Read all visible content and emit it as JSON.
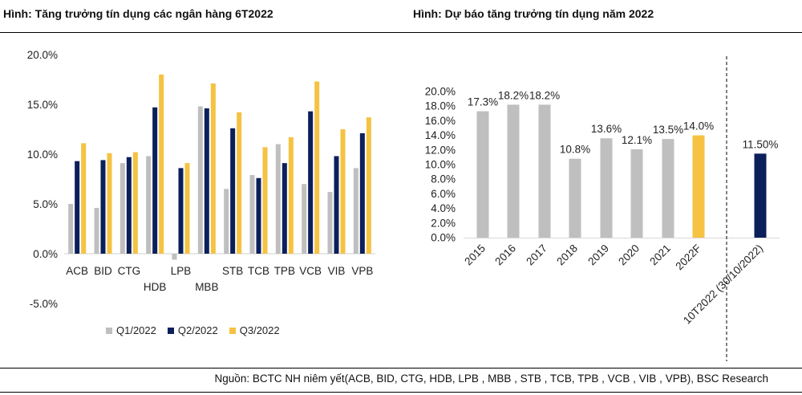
{
  "figures": {
    "left_title": "Hình: Tăng trưởng tín dụng các ngân hàng 6T2022",
    "right_title": "Hình: Dự báo tăng trưởng tín dụng năm 2022",
    "source": "Nguồn: BCTC NH niêm yết(ACB, BID, CTG, HDB, LPB , MBB , STB , TCB, TPB , VCB , VIB , VPB), BSC Research"
  },
  "chart_data": [
    {
      "type": "bar",
      "categories": [
        "ACB",
        "BID",
        "CTG",
        "HDB",
        "LPB",
        "MBB",
        "STB",
        "TCB",
        "TPB",
        "VCB",
        "VIB",
        "VPB"
      ],
      "series": [
        {
          "name": "Q1/2022",
          "color": "#bfbfbf",
          "values": [
            5.0,
            4.6,
            9.1,
            9.8,
            -0.6,
            14.8,
            6.5,
            7.9,
            11.0,
            7.0,
            6.2,
            8.6
          ]
        },
        {
          "name": "Q2/2022",
          "color": "#0b1f5b",
          "values": [
            9.3,
            9.4,
            9.7,
            14.7,
            8.6,
            14.6,
            12.6,
            7.6,
            9.1,
            14.3,
            9.8,
            12.1
          ]
        },
        {
          "name": "Q3/2022",
          "color": "#f5c242",
          "values": [
            11.1,
            10.1,
            10.2,
            18.0,
            9.1,
            17.1,
            14.2,
            10.7,
            11.7,
            17.3,
            12.5,
            13.7
          ]
        }
      ],
      "ylim": [
        -5,
        20
      ],
      "yticks": [
        "20.0%",
        "15.0%",
        "10.0%",
        "5.0%",
        "0.0%",
        "-5.0%"
      ],
      "ytick_values": [
        20,
        15,
        10,
        5,
        0,
        -5
      ],
      "legend": "bottom",
      "grid": false
    },
    {
      "type": "bar",
      "categories": [
        "2015",
        "2016",
        "2017",
        "2018",
        "2019",
        "2020",
        "2021",
        "2022F",
        "10T2022 (30/10/2022)"
      ],
      "values": [
        17.3,
        18.2,
        18.2,
        10.8,
        13.6,
        12.1,
        13.5,
        14.0,
        11.5
      ],
      "data_labels": [
        "17.3%",
        "18.2%",
        "18.2%",
        "10.8%",
        "13.6%",
        "12.1%",
        "13.5%",
        "14.0%",
        "11.50%"
      ],
      "colors": [
        "#bfbfbf",
        "#bfbfbf",
        "#bfbfbf",
        "#bfbfbf",
        "#bfbfbf",
        "#bfbfbf",
        "#bfbfbf",
        "#f5c242",
        "#0b1f5b"
      ],
      "ylim": [
        0,
        20
      ],
      "yticks": [
        "20.0%",
        "18.0%",
        "16.0%",
        "14.0%",
        "12.0%",
        "10.0%",
        "8.0%",
        "6.0%",
        "4.0%",
        "2.0%",
        "0.0%"
      ],
      "ytick_values": [
        20,
        18,
        16,
        14,
        12,
        10,
        8,
        6,
        4,
        2,
        0
      ],
      "separator": "dashed vertical line before last bar",
      "grid": false
    }
  ]
}
